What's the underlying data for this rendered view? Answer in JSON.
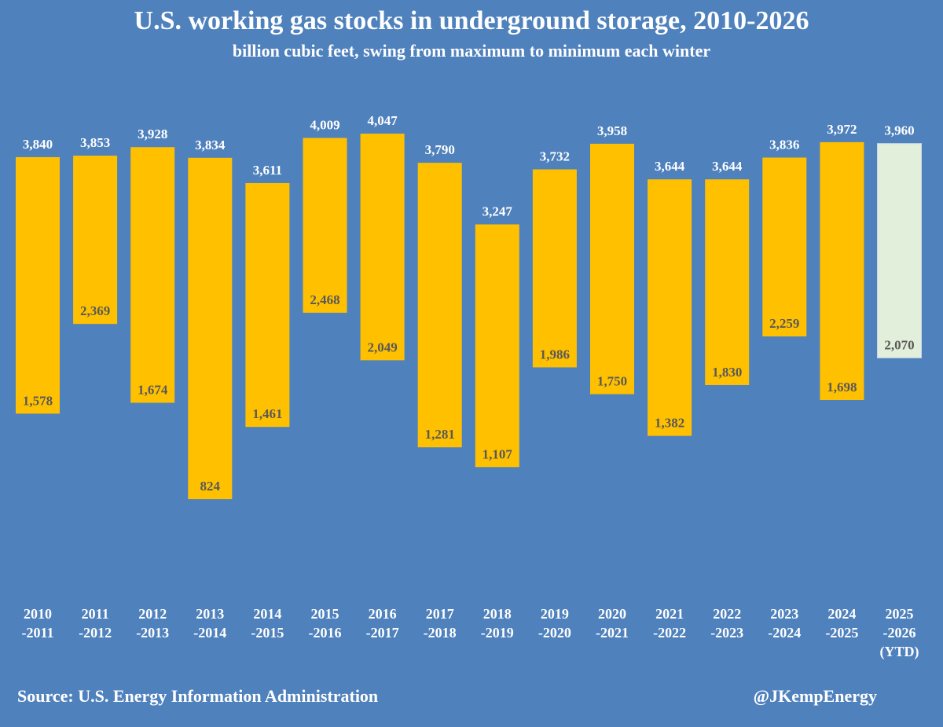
{
  "chart_data": {
    "type": "bar",
    "subtype": "floating-range",
    "title": "U.S. working gas stocks in underground storage, 2010-2026",
    "subtitle": "billion cubic feet, swing from maximum to minimum each winter",
    "categories": [
      [
        "2010",
        "-2011"
      ],
      [
        "2011",
        "-2012"
      ],
      [
        "2012",
        "-2013"
      ],
      [
        "2013",
        "-2014"
      ],
      [
        "2014",
        "-2015"
      ],
      [
        "2015",
        "-2016"
      ],
      [
        "2016",
        "-2017"
      ],
      [
        "2017",
        "-2018"
      ],
      [
        "2018",
        "-2019"
      ],
      [
        "2019",
        "-2020"
      ],
      [
        "2020",
        "-2021"
      ],
      [
        "2021",
        "-2022"
      ],
      [
        "2022",
        "-2023"
      ],
      [
        "2023",
        "-2024"
      ],
      [
        "2024",
        "-2025"
      ],
      [
        "2025",
        "-2026",
        "(YTD)"
      ]
    ],
    "series": [
      {
        "key": "maximum",
        "values": [
          3840,
          3853,
          3928,
          3834,
          3611,
          4009,
          4047,
          3790,
          3247,
          3732,
          3958,
          3644,
          3644,
          3836,
          3972,
          3960
        ],
        "labels": [
          "3,840",
          "3,853",
          "3,928",
          "3,834",
          "3,611",
          "4,009",
          "4,047",
          "3,790",
          "3,247",
          "3,732",
          "3,958",
          "3,644",
          "3,644",
          "3,836",
          "3,972",
          "3,960"
        ]
      },
      {
        "key": "minimum",
        "values": [
          1578,
          2369,
          1674,
          824,
          1461,
          2468,
          2049,
          1281,
          1107,
          1986,
          1750,
          1382,
          1830,
          2259,
          1698,
          2070
        ],
        "labels": [
          "1,578",
          "2,369",
          "1,674",
          "824",
          "1,461",
          "2,468",
          "2,049",
          "1,281",
          "1,107",
          "1,986",
          "1,750",
          "1,382",
          "1,830",
          "2,259",
          "1,698",
          "2,070"
        ]
      }
    ],
    "ylim": [
      0,
      4500
    ],
    "grid": false,
    "legend": "none",
    "colors": {
      "background": "#4f81bd",
      "bar": "#ffc000",
      "bar_ytd": "#e2efda",
      "top_label": "#ffffff",
      "bottom_label": "#595959"
    }
  },
  "footer": {
    "source": "Source: U.S. Energy Information Administration",
    "handle": "@JKempEnergy"
  }
}
